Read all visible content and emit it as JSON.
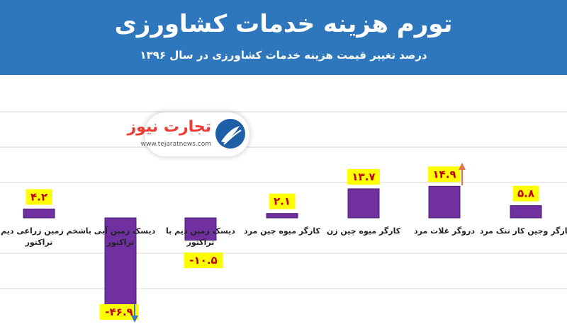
{
  "header": {
    "title": "تورم هزینه خدمات کشاورزی",
    "subtitle": "درصد تغییر قیمت هزینه خدمات کشاورزی در سال ۱۳۹۶"
  },
  "logo": {
    "word": "تجارت نیوز",
    "url": "www.tejaratnews.com"
  },
  "colors": {
    "header_bg": "#2f77bd",
    "bar_fill": "#7030a0",
    "label_bg": "#ffff00",
    "label_text": "#c00000",
    "arrow_up": "#e8734a",
    "arrow_down": "#3a78c9",
    "grid": "#d9d9d9"
  },
  "chart_data": {
    "type": "bar",
    "categories": [
      "کارگر وجین کار تنک مرد",
      "دروگر غلات مرد",
      "کارگر میوه چین زن",
      "کارگر میوه چین مرد",
      "دیسک زمین دیم با تراکتور",
      "دیسک زمین آبی با تراکتور",
      "شخم زمین زراعی دیم با تراکتور"
    ],
    "values": [
      5.8,
      14.9,
      13.7,
      2.1,
      -10.5,
      -46.9,
      4.2
    ],
    "value_labels": [
      "۵.۸",
      "۱۴.۹",
      "۱۳.۷",
      "۲.۱",
      "-۱۰.۵",
      "-۴۶.۹",
      "۴.۲"
    ],
    "title": "",
    "xlabel": "",
    "ylabel": "",
    "grid": true,
    "legend": "none"
  }
}
